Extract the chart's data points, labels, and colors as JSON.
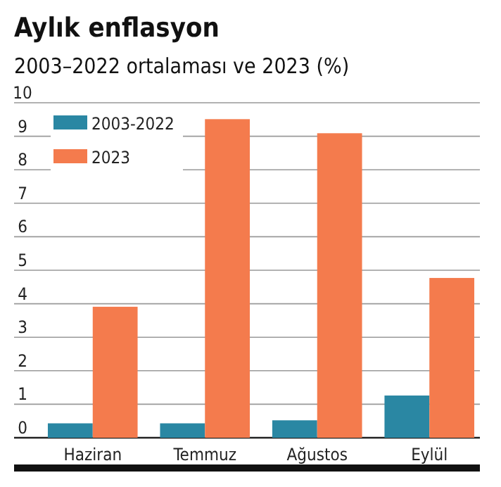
{
  "chart_data": {
    "type": "bar",
    "title": "Aylık enflasyon",
    "subtitle": "2003–2022 ortalaması ve 2023 (%)",
    "categories": [
      "Haziran",
      "Temmuz",
      "Ağustos",
      "Eylül"
    ],
    "series": [
      {
        "name": "2003-2022",
        "color": "#2a87a3",
        "values": [
          0.43,
          0.43,
          0.52,
          1.26
        ]
      },
      {
        "name": "2023",
        "color": "#f47b4d",
        "values": [
          3.91,
          9.51,
          9.09,
          4.77
        ]
      }
    ],
    "ylim": [
      0,
      10
    ],
    "yticks": [
      0,
      1,
      2,
      3,
      4,
      5,
      6,
      7,
      8,
      9,
      10
    ],
    "grid": "y",
    "legend": "top left"
  }
}
